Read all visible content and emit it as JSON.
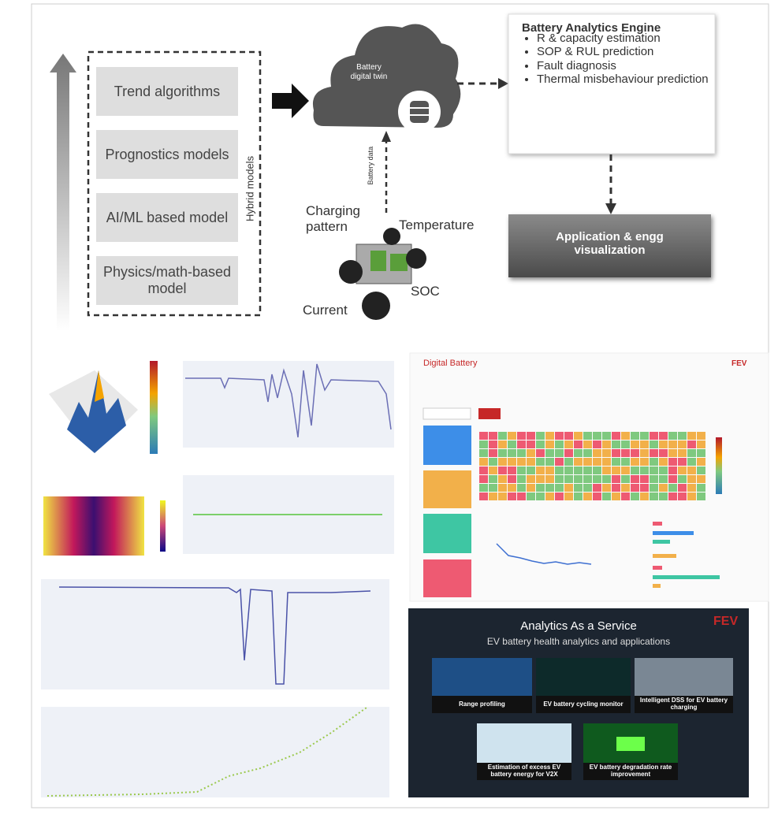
{
  "diagram": {
    "models": [
      "Trend algorithms",
      "Prognostics models",
      "AI/ML based model",
      "Physics/math-based model"
    ],
    "models_group_label": "Hybrid models",
    "twin_label": "Battery digital twin",
    "data_label": "Battery data",
    "inputs": [
      "Charging pattern",
      "Temperature",
      "SOC",
      "Current"
    ],
    "engine": {
      "title": "Battery Analytics Engine",
      "items": [
        "R & capacity estimation",
        "SOP & RUL prediction",
        "Fault diagnosis",
        "Thermal misbehaviour prediction"
      ]
    },
    "application": "Application & engg visualization"
  },
  "dashboard": {
    "title": "Digital Battery",
    "logo": "FEV"
  },
  "service": {
    "title": "Analytics As a Service",
    "subtitle": "EV battery health analytics and applications",
    "logo": "FEV",
    "tiles": [
      "Range profiling",
      "EV battery cycling monitor",
      "Intelligent DSS for EV battery charging",
      "Estimation of excess EV battery energy for V2X",
      "EV battery degradation rate improvement"
    ]
  }
}
